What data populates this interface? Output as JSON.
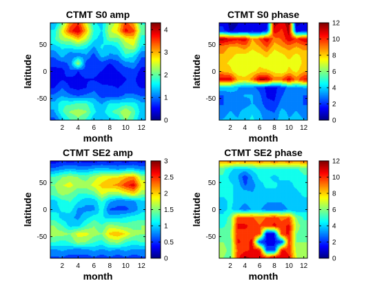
{
  "chart_data": [
    {
      "type": "heatmap",
      "title": "CTMT S0 amp",
      "xlabel": "month",
      "ylabel": "latitude",
      "xlim": [
        0.5,
        12.5
      ],
      "ylim": [
        -90,
        90
      ],
      "xticks": [
        2,
        4,
        6,
        8,
        10,
        12
      ],
      "yticks": [
        -50,
        0,
        50
      ],
      "colorbar": {
        "min": 0,
        "max": 4.3,
        "ticks": [
          0,
          1,
          2,
          3,
          4
        ]
      },
      "x": [
        1,
        2,
        3,
        4,
        5,
        6,
        7,
        8,
        9,
        10,
        11,
        12
      ],
      "y": [
        -90,
        -75,
        -60,
        -45,
        -30,
        -15,
        0,
        15,
        30,
        45,
        60,
        75,
        90
      ],
      "values": [
        [
          0.8,
          1.4,
          1.8,
          2.1,
          1.8,
          1.3,
          1.2,
          1.4,
          1.5,
          2.2,
          1.8,
          1.2
        ],
        [
          1.2,
          1.8,
          2.2,
          2.3,
          2.2,
          1.6,
          1.4,
          1.8,
          2.0,
          2.5,
          2.0,
          1.4
        ],
        [
          1.3,
          1.8,
          1.8,
          1.9,
          1.9,
          1.5,
          1.2,
          1.6,
          1.6,
          1.7,
          1.7,
          1.3
        ],
        [
          1.0,
          1.2,
          1.0,
          0.9,
          1.0,
          1.1,
          0.8,
          0.8,
          0.8,
          1.0,
          1.0,
          0.9
        ],
        [
          0.6,
          0.9,
          0.6,
          0.5,
          0.6,
          0.8,
          0.7,
          0.7,
          0.6,
          0.7,
          0.7,
          0.6
        ],
        [
          0.4,
          0.6,
          0.5,
          0.5,
          0.6,
          0.6,
          0.5,
          0.4,
          0.5,
          0.6,
          0.7,
          0.4
        ],
        [
          0.5,
          0.5,
          0.9,
          0.6,
          0.8,
          0.7,
          0.6,
          0.4,
          0.6,
          0.7,
          0.8,
          0.5
        ],
        [
          0.7,
          0.8,
          1.0,
          2.4,
          0.8,
          0.6,
          0.8,
          0.6,
          0.8,
          1.1,
          1.2,
          0.7
        ],
        [
          1.0,
          1.4,
          1.0,
          1.0,
          1.2,
          0.8,
          1.4,
          1.2,
          1.2,
          1.8,
          1.6,
          1.0
        ],
        [
          1.4,
          1.6,
          1.6,
          1.8,
          1.6,
          1.2,
          1.6,
          1.3,
          1.6,
          2.2,
          2.4,
          1.5
        ],
        [
          1.8,
          2.3,
          2.4,
          2.9,
          2.4,
          1.6,
          1.4,
          2.1,
          2.0,
          2.6,
          2.8,
          1.7
        ],
        [
          1.6,
          2.6,
          3.6,
          4.0,
          3.0,
          1.8,
          1.5,
          2.4,
          2.8,
          3.8,
          3.5,
          2.0
        ],
        [
          1.2,
          2.0,
          3.2,
          3.6,
          2.6,
          1.6,
          1.4,
          2.2,
          2.6,
          3.5,
          3.0,
          1.8
        ]
      ]
    },
    {
      "type": "heatmap",
      "title": "CTMT S0 phase",
      "xlabel": "month",
      "ylabel": "latitude",
      "xlim": [
        0.5,
        12.5
      ],
      "ylim": [
        -90,
        90
      ],
      "xticks": [
        2,
        4,
        6,
        8,
        10,
        12
      ],
      "yticks": [
        -50,
        0,
        50
      ],
      "colorbar": {
        "min": 0,
        "max": 12,
        "ticks": [
          0,
          2,
          4,
          6,
          8,
          10,
          12
        ]
      },
      "x": [
        1,
        2,
        3,
        4,
        5,
        6,
        7,
        8,
        9,
        10,
        11,
        12
      ],
      "y": [
        -90,
        -75,
        -60,
        -45,
        -30,
        -15,
        0,
        15,
        30,
        45,
        60,
        75,
        90
      ],
      "values": [
        [
          3.5,
          3.8,
          3.5,
          4.0,
          4.5,
          3.8,
          3.0,
          3.0,
          4.0,
          3.5,
          3.8,
          3.5
        ],
        [
          3.0,
          3.5,
          3.2,
          3.8,
          4.2,
          3.5,
          2.8,
          2.5,
          3.8,
          3.2,
          3.5,
          3.0
        ],
        [
          2.5,
          3.0,
          3.0,
          3.0,
          3.5,
          3.0,
          2.0,
          1.8,
          3.0,
          3.0,
          3.0,
          2.5
        ],
        [
          2.5,
          3.0,
          3.2,
          3.5,
          3.5,
          2.8,
          1.6,
          1.5,
          2.5,
          3.2,
          3.0,
          2.5
        ],
        [
          4.0,
          4.0,
          3.5,
          3.0,
          3.0,
          2.2,
          1.5,
          1.5,
          2.0,
          3.0,
          3.0,
          3.5
        ],
        [
          11.0,
          11.0,
          8.5,
          8.0,
          9.0,
          11.5,
          11.5,
          9.0,
          9.5,
          11.0,
          9.0,
          10.5
        ],
        [
          8.5,
          8.0,
          7.0,
          7.0,
          7.5,
          8.0,
          8.0,
          7.5,
          7.0,
          8.0,
          7.5,
          8.5
        ],
        [
          8.0,
          7.5,
          7.0,
          7.0,
          7.0,
          7.5,
          7.0,
          7.0,
          7.0,
          7.5,
          7.0,
          8.0
        ],
        [
          8.5,
          8.0,
          7.5,
          7.5,
          7.0,
          7.5,
          8.0,
          7.0,
          7.5,
          8.0,
          7.5,
          8.0
        ],
        [
          9.0,
          8.5,
          8.5,
          9.0,
          8.0,
          8.5,
          9.5,
          8.0,
          8.5,
          9.0,
          8.5,
          9.0
        ],
        [
          11.5,
          11.0,
          10.5,
          11.0,
          8.5,
          9.5,
          11.0,
          9.0,
          9.5,
          11.0,
          10.0,
          11.0
        ],
        [
          2.0,
          0.8,
          1.0,
          1.0,
          1.5,
          1.0,
          2.0,
          11.0,
          10.0,
          11.5,
          1.2,
          1.5
        ],
        [
          1.5,
          0.5,
          0.8,
          1.5,
          1.0,
          0.8,
          1.0,
          11.5,
          11.0,
          11.5,
          0.5,
          1.0
        ]
      ]
    },
    {
      "type": "heatmap",
      "title": "CTMT SE2 amp",
      "xlabel": "month",
      "ylabel": "latitude",
      "xlim": [
        0.5,
        12.5
      ],
      "ylim": [
        -90,
        90
      ],
      "xticks": [
        2,
        4,
        6,
        8,
        10,
        12
      ],
      "yticks": [
        -50,
        0,
        50
      ],
      "colorbar": {
        "min": 0,
        "max": 3,
        "ticks": [
          0,
          0.5,
          1,
          1.5,
          2,
          2.5,
          3
        ]
      },
      "x": [
        1,
        2,
        3,
        4,
        5,
        6,
        7,
        8,
        9,
        10,
        11,
        12
      ],
      "y": [
        -90,
        -75,
        -60,
        -45,
        -30,
        -15,
        0,
        15,
        30,
        45,
        60,
        75,
        90
      ],
      "values": [
        [
          0.6,
          0.6,
          0.5,
          0.6,
          0.5,
          0.6,
          0.5,
          0.6,
          0.5,
          0.6,
          0.5,
          0.6
        ],
        [
          0.8,
          0.9,
          0.8,
          0.7,
          0.8,
          0.9,
          0.8,
          0.9,
          0.8,
          0.9,
          0.8,
          0.8
        ],
        [
          1.3,
          1.2,
          1.3,
          1.6,
          1.5,
          1.3,
          1.2,
          1.5,
          1.6,
          1.3,
          1.2,
          1.3
        ],
        [
          1.6,
          1.6,
          1.5,
          1.8,
          1.8,
          1.6,
          1.5,
          2.0,
          2.1,
          1.9,
          1.6,
          1.5
        ],
        [
          1.5,
          1.3,
          1.0,
          1.0,
          1.3,
          1.5,
          1.3,
          1.6,
          1.5,
          1.4,
          1.4,
          1.5
        ],
        [
          1.2,
          1.0,
          0.9,
          0.8,
          1.0,
          1.2,
          1.1,
          1.0,
          1.0,
          1.1,
          1.2,
          1.2
        ],
        [
          1.0,
          1.1,
          1.2,
          0.8,
          0.8,
          0.8,
          1.2,
          0.6,
          0.6,
          0.6,
          0.7,
          1.0
        ],
        [
          1.0,
          1.2,
          1.3,
          1.1,
          0.9,
          0.9,
          1.3,
          0.9,
          0.7,
          0.7,
          0.8,
          1.0
        ],
        [
          1.4,
          1.6,
          1.5,
          1.3,
          1.3,
          1.4,
          1.8,
          1.6,
          1.6,
          1.8,
          2.0,
          1.6
        ],
        [
          1.5,
          1.7,
          1.8,
          1.6,
          1.6,
          1.8,
          2.0,
          2.1,
          2.2,
          2.5,
          2.7,
          1.9
        ],
        [
          1.3,
          1.5,
          1.6,
          1.5,
          1.4,
          1.6,
          1.8,
          1.9,
          1.9,
          2.1,
          2.2,
          1.6
        ],
        [
          0.7,
          0.8,
          0.9,
          0.8,
          0.8,
          0.9,
          0.9,
          0.9,
          0.8,
          0.9,
          0.9,
          0.8
        ],
        [
          0.3,
          0.4,
          0.3,
          0.4,
          0.3,
          0.3,
          0.4,
          0.3,
          0.4,
          0.3,
          0.4,
          0.3
        ]
      ]
    },
    {
      "type": "heatmap",
      "title": "CTMT SE2 phase",
      "xlabel": "month",
      "ylabel": "latitude",
      "xlim": [
        0.5,
        12.5
      ],
      "ylim": [
        -90,
        90
      ],
      "xticks": [
        2,
        4,
        6,
        8,
        10,
        12
      ],
      "yticks": [
        -50,
        0,
        50
      ],
      "colorbar": {
        "min": 0,
        "max": 12,
        "ticks": [
          0,
          2,
          4,
          6,
          8,
          10,
          12
        ]
      },
      "x": [
        1,
        2,
        3,
        4,
        5,
        6,
        7,
        8,
        9,
        10,
        11,
        12
      ],
      "y": [
        -90,
        -75,
        -60,
        -45,
        -30,
        -15,
        0,
        15,
        30,
        45,
        60,
        75,
        90
      ],
      "values": [
        [
          6.0,
          5.5,
          10.0,
          11.5,
          11.0,
          11.0,
          10.5,
          11.5,
          11.0,
          10.5,
          7.0,
          6.0
        ],
        [
          6.5,
          5.5,
          9.5,
          10.0,
          10.5,
          10.5,
          2.0,
          2.0,
          10.5,
          10.0,
          6.5,
          6.5
        ],
        [
          6.0,
          5.5,
          10.5,
          10.0,
          10.5,
          2.0,
          1.5,
          1.5,
          2.0,
          10.0,
          6.0,
          6.0
        ],
        [
          5.5,
          6.0,
          10.0,
          10.0,
          10.0,
          10.0,
          1.0,
          1.5,
          10.0,
          10.5,
          6.0,
          5.5
        ],
        [
          5.0,
          5.5,
          10.5,
          10.5,
          10.0,
          9.5,
          10.0,
          10.5,
          10.0,
          10.5,
          6.5,
          5.5
        ],
        [
          4.5,
          5.5,
          9.5,
          9.5,
          9.5,
          9.0,
          9.5,
          10.0,
          9.0,
          9.5,
          6.0,
          5.0
        ],
        [
          4.0,
          4.5,
          3.5,
          3.0,
          3.5,
          3.5,
          3.0,
          3.0,
          3.0,
          3.5,
          3.5,
          4.0
        ],
        [
          4.0,
          4.5,
          4.0,
          3.5,
          4.0,
          4.0,
          3.5,
          3.5,
          3.5,
          4.0,
          4.0,
          4.0
        ],
        [
          4.5,
          4.5,
          4.0,
          4.0,
          3.5,
          4.0,
          4.0,
          4.0,
          4.0,
          4.0,
          4.0,
          4.5
        ],
        [
          5.0,
          4.5,
          4.0,
          2.5,
          3.0,
          4.0,
          4.5,
          4.5,
          4.0,
          4.0,
          4.5,
          5.0
        ],
        [
          5.0,
          4.0,
          3.5,
          2.0,
          3.5,
          4.5,
          4.5,
          4.0,
          4.5,
          4.5,
          4.5,
          5.0
        ],
        [
          5.5,
          4.5,
          4.0,
          4.0,
          4.5,
          5.0,
          5.0,
          5.0,
          5.0,
          5.0,
          5.0,
          5.5
        ],
        [
          9.0,
          9.5,
          9.0,
          9.5,
          9.0,
          9.5,
          9.0,
          9.5,
          9.0,
          9.5,
          9.0,
          9.5
        ]
      ]
    }
  ]
}
